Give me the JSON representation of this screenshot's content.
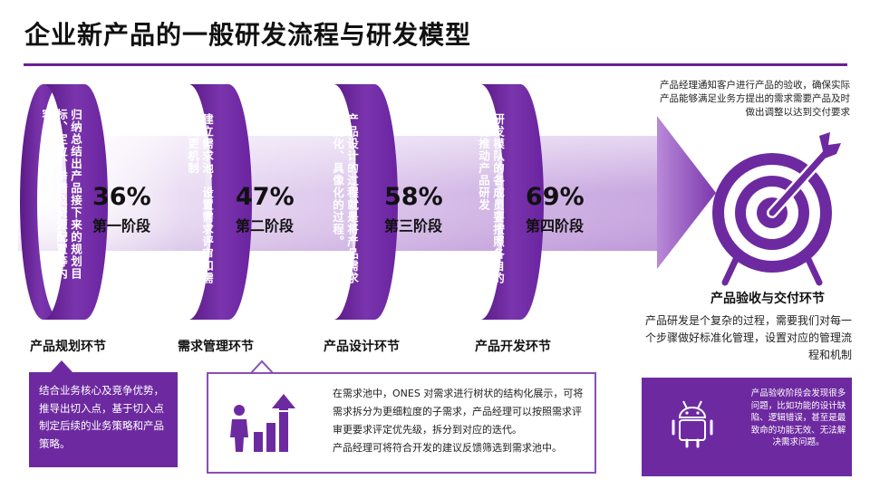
{
  "title": "企业新产品的一般研发流程与研发模型",
  "stages": [
    {
      "desc": "归纳总结出产品接下来的规划目标、定位、举措及资源配置等内容",
      "percent": "36%",
      "stage_name": "第一阶段",
      "label": "产品规划环节"
    },
    {
      "desc": "建立需求池，设置需求评审和需求变更机制",
      "percent": "47%",
      "stage_name": "第二阶段",
      "label": "需求管理环节"
    },
    {
      "desc": "产品设计的过程就是将产品需求功能化、具像化的过程。",
      "percent": "58%",
      "stage_name": "第三阶段",
      "label": "产品设计环节"
    },
    {
      "desc": "研发模队的各成员要按照各自的职能推动产品研发",
      "percent": "69%",
      "stage_name": "第四阶段",
      "label": "产品开发环节"
    }
  ],
  "acceptance": {
    "note": "产品经理通知客户进行产品的验收，确保实际产品能够满足业务方提出的需求需要产品及时做出调整以达到交付要求",
    "heading": "产品验收与交付环节",
    "desc": "产品研发是个复杂的过程，需要我们对每一个步骤做好标准化管理，设置对应的管理流程和机制"
  },
  "boxes": {
    "planning": "结合业务核心及竞争优势，推导出切入点，基于切入点制定后续的业务策略和产品策略。",
    "requirements_lines": [
      "在需求池中，ONES 对需求进行树状的结构化展示，可将",
      "需求拆分为更细粒度的子需求，产品经理可以按照需求评",
      "审更要求评定优先级，拆分到对应的迭代。",
      "产品经理可将符合开发的建议反馈筛选到需求池中。"
    ],
    "acceptance": "产品验收阶段会发现很多问题，比如功能的设计缺陷、逻辑错误，甚至是最致命的功能无效、无法解决需求问题。"
  },
  "icons": [
    "target-arrow-icon",
    "growth-chart-icon",
    "android-icon"
  ],
  "colors": {
    "primary": "#6d2aa0",
    "dark": "#4c1670",
    "light": "#b58ad4",
    "text": "#1a1a1a"
  }
}
